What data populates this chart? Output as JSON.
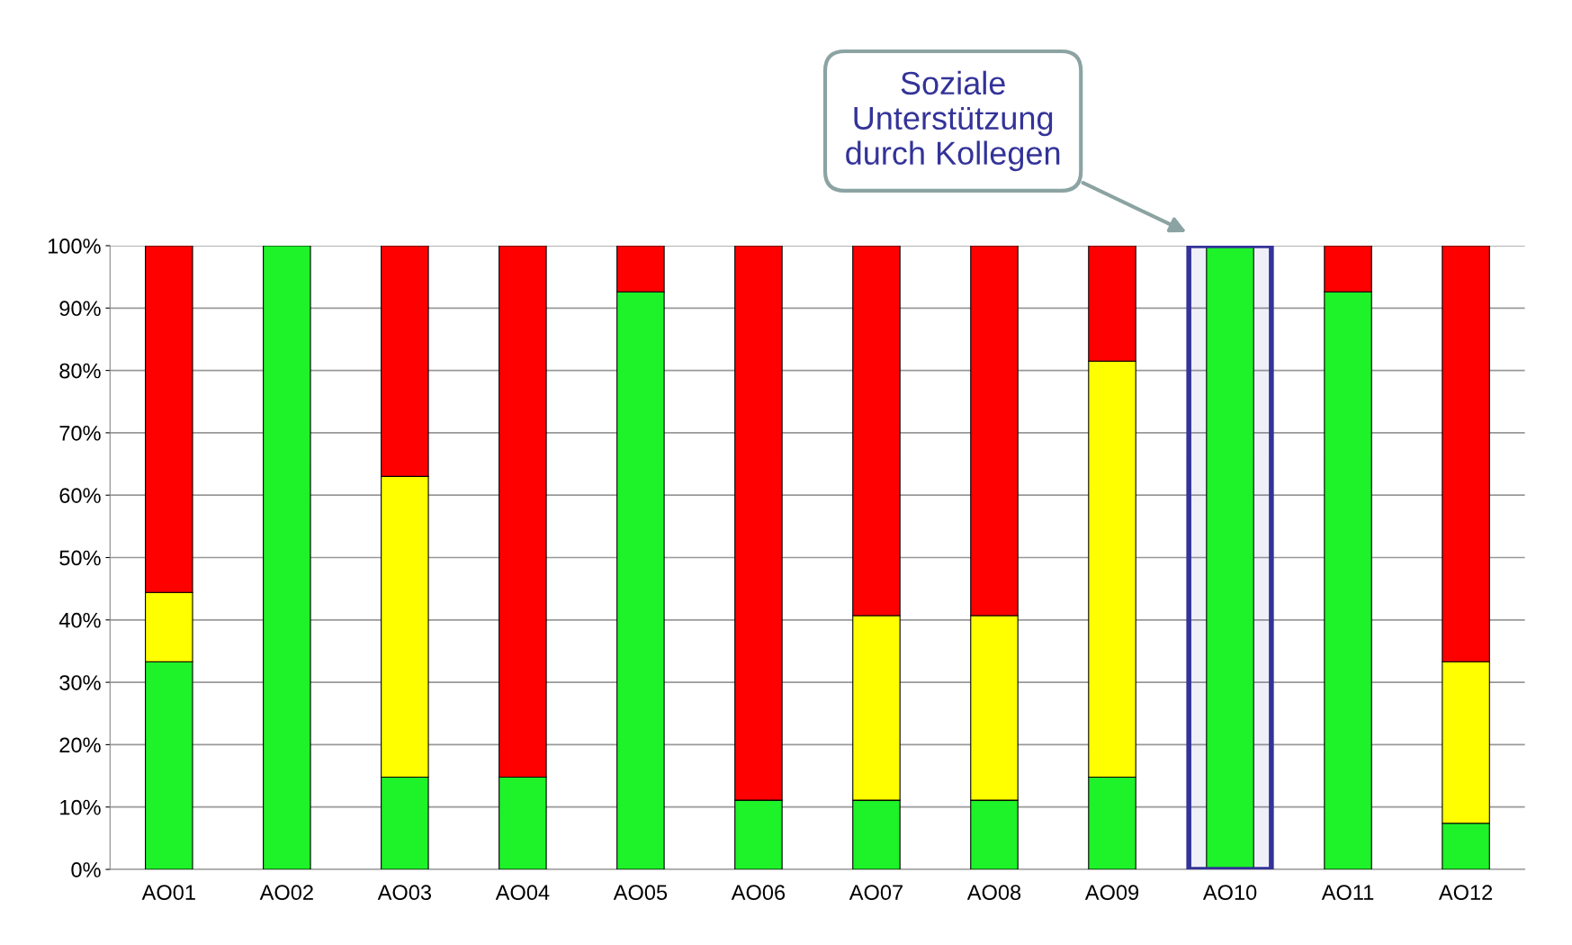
{
  "chart_data": {
    "type": "bar",
    "stacked": true,
    "categories": [
      "AO01",
      "AO02",
      "AO03",
      "AO04",
      "AO05",
      "AO06",
      "AO07",
      "AO08",
      "AO09",
      "AO10",
      "AO11",
      "AO12"
    ],
    "series": [
      {
        "color": "#1ef229",
        "values": [
          33.3,
          100,
          14.8,
          14.8,
          92.6,
          11.1,
          11.1,
          11.1,
          14.8,
          100,
          92.6,
          7.4
        ]
      },
      {
        "color": "#ffff00",
        "values": [
          11.1,
          0,
          48.2,
          0,
          0,
          0,
          29.6,
          29.6,
          66.7,
          0,
          0,
          25.9
        ]
      },
      {
        "color": "#ff0000",
        "values": [
          55.6,
          0,
          37.0,
          85.2,
          7.4,
          88.9,
          59.3,
          59.3,
          18.5,
          0,
          7.4,
          66.7
        ]
      }
    ],
    "ylim": [
      0,
      100
    ],
    "yticks": [
      {
        "value": 0,
        "label": "0%"
      },
      {
        "value": 10,
        "label": "10%"
      },
      {
        "value": 20,
        "label": "20%"
      },
      {
        "value": 30,
        "label": "30%"
      },
      {
        "value": 40,
        "label": "40%"
      },
      {
        "value": 50,
        "label": "50%"
      },
      {
        "value": 60,
        "label": "60%"
      },
      {
        "value": 70,
        "label": "70%"
      },
      {
        "value": 80,
        "label": "80%"
      },
      {
        "value": 90,
        "label": "90%"
      },
      {
        "value": 100,
        "label": "100%"
      }
    ],
    "grid": "y",
    "bands": [
      {
        "axis": "x",
        "from": "AO10",
        "to": "AO10",
        "color": "#333399"
      }
    ],
    "annotations": [
      "Soziale\nUnterstützung\ndurch Kollegen"
    ]
  }
}
